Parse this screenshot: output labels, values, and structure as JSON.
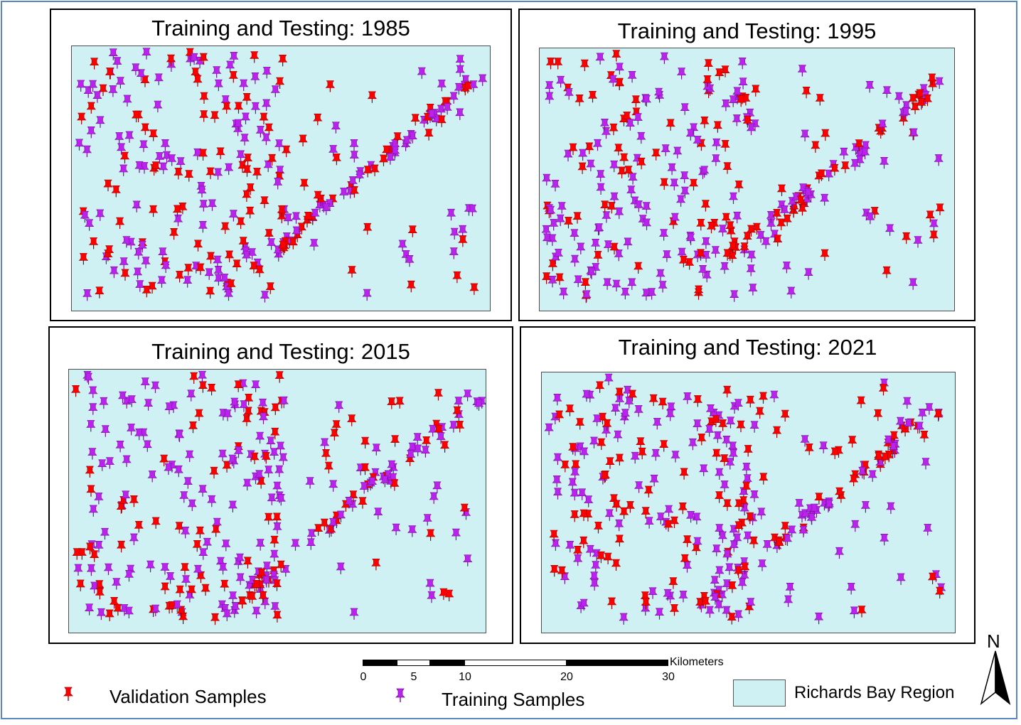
{
  "panels": [
    {
      "title": "Training and Testing: 1985"
    },
    {
      "title": "Training and Testing: 1995"
    },
    {
      "title": "Training and Testing: 2015"
    },
    {
      "title": "Training and Testing: 2021"
    }
  ],
  "legend": {
    "validation_label": "Validation Samples",
    "training_label": "Training Samples",
    "region_label": "Richards Bay Region"
  },
  "scale_bar": {
    "unit": "Kilometers",
    "ticks": [
      "0",
      "5",
      "10",
      "20",
      "30"
    ]
  },
  "north_arrow": {
    "label": "N"
  },
  "colors": {
    "validation": "#ff0000",
    "training": "#bb22ee",
    "region_fill": "#cff1f4",
    "frame": "#5a86c4"
  },
  "icons": {
    "validation": "red-pushpin-icon",
    "training": "purple-pushpin-icon"
  }
}
